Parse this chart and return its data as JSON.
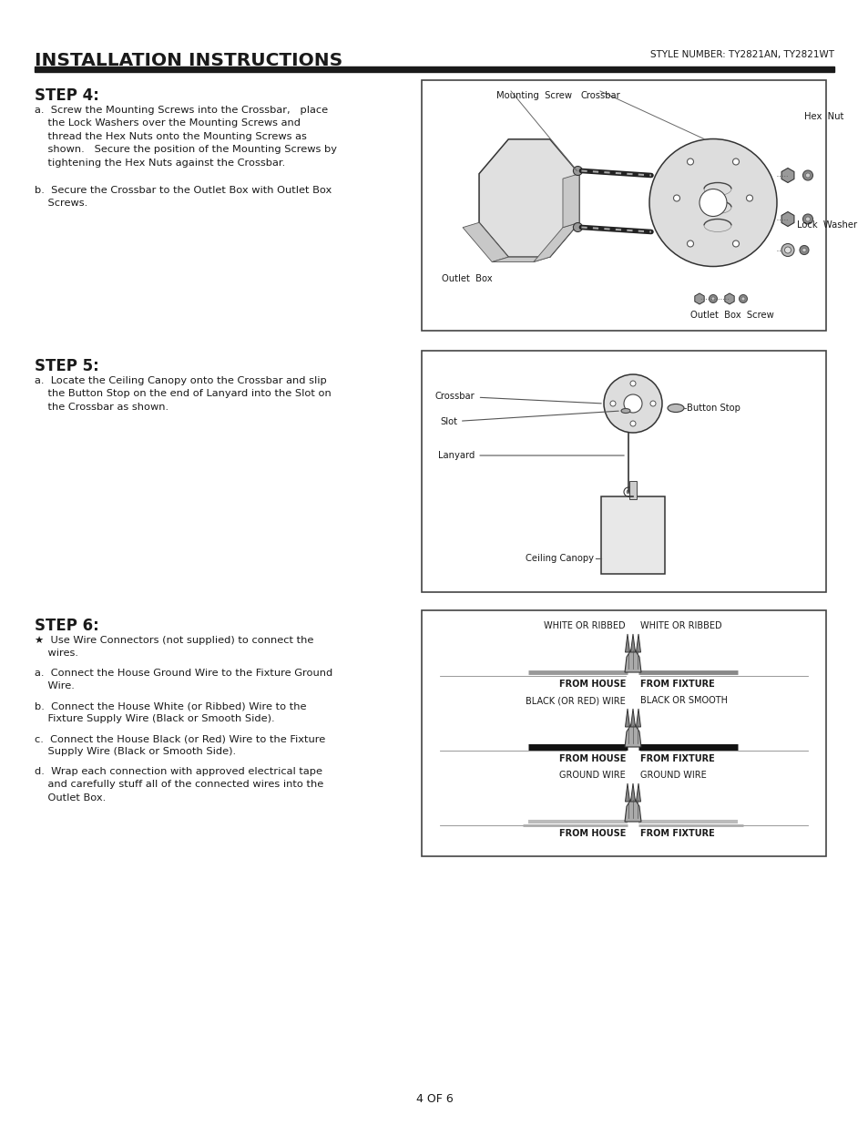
{
  "page_bg": "#ffffff",
  "title_text": "INSTALLATION INSTRUCTIONS",
  "style_number": "STYLE NUMBER: TY2821AN, TY2821WT",
  "page_number": "4 OF 6",
  "step4_title": "STEP 4:",
  "step4_text_a": "a.  Screw the Mounting Screws into the Crossbar,   place\n    the Lock Washers over the Mounting Screws and\n    thread the Hex Nuts onto the Mounting Screws as\n    shown.   Secure the position of the Mounting Screws by\n    tightening the Hex Nuts against the Crossbar.",
  "step4_text_b": "b.  Secure the Crossbar to the Outlet Box with Outlet Box\n    Screws.",
  "step5_title": "STEP 5:",
  "step5_text_a": "a.  Locate the Ceiling Canopy onto the Crossbar and slip\n    the Button Stop on the end of Lanyard into the Slot on\n    the Crossbar as shown.",
  "step6_title": "STEP 6:",
  "step6_star": "★  Use Wire Connectors (not supplied) to connect the\n    wires.",
  "step6_text_a": "a.  Connect the House Ground Wire to the Fixture Ground\n    Wire.",
  "step6_text_b": "b.  Connect the House White (or Ribbed) Wire to the\n    Fixture Supply Wire (Black or Smooth Side).",
  "step6_text_c": "c.  Connect the House Black (or Red) Wire to the Fixture\n    Supply Wire (Black or Smooth Side).",
  "step6_text_d": "d.  Wrap each connection with approved electrical tape\n    and carefully stuff all of the connected wires into the\n    Outlet Box.",
  "header_line_color": "#1a1a1a",
  "text_color": "#1a1a1a",
  "box_border_color": "#444444",
  "diagram_bg": "#ffffff"
}
